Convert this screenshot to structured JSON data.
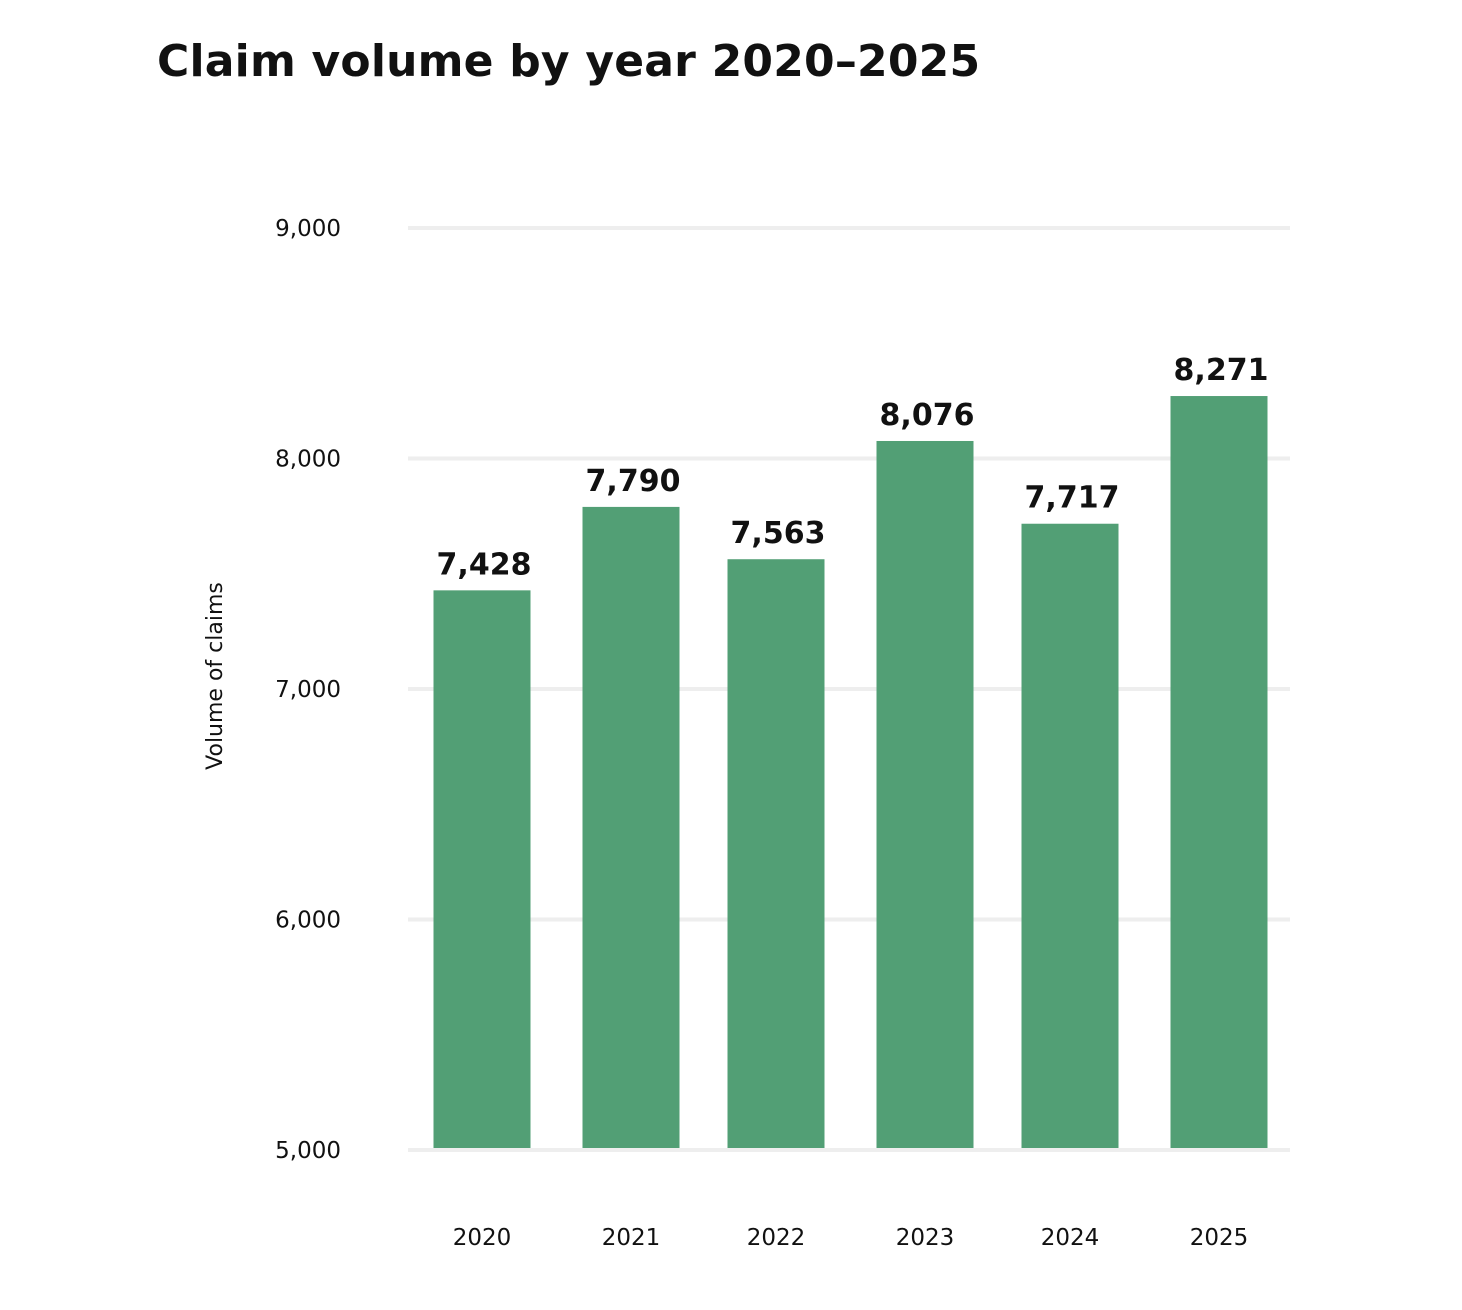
{
  "chart_data": {
    "type": "bar",
    "title": "Claim volume by year 2020–2025",
    "xlabel": "",
    "ylabel": "Volume of claims",
    "categories": [
      "2020",
      "2021",
      "2022",
      "2023",
      "2024",
      "2025"
    ],
    "values": [
      7428,
      7790,
      7563,
      8076,
      7717,
      8271
    ],
    "value_labels": [
      "7,428",
      "7,790",
      "7,563",
      "8,076",
      "7,717",
      "8,271"
    ],
    "ylim": [
      5000,
      9000
    ],
    "yticks": [
      5000,
      6000,
      7000,
      8000,
      9000
    ],
    "ytick_labels": [
      "5,000",
      "6,000",
      "7,000",
      "8,000",
      "9,000"
    ],
    "grid": "horizontal",
    "legend": "none",
    "colors": {
      "bar": "#529f75",
      "grid": "#eeeeee",
      "text": "#111111"
    }
  }
}
